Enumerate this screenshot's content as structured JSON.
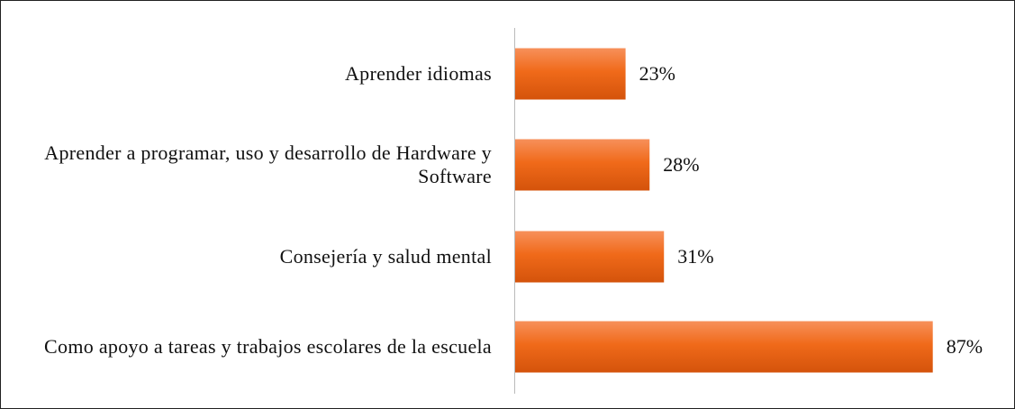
{
  "chart_data": {
    "type": "bar",
    "orientation": "horizontal",
    "categories": [
      "Aprender idiomas",
      "Aprender a programar, uso y desarrollo de Hardware y Software",
      "Consejería y salud mental",
      "Como apoyo a tareas y trabajos escolares de la escuela"
    ],
    "values": [
      23,
      28,
      31,
      87
    ],
    "value_labels": [
      "23%",
      "28%",
      "31%",
      "87%"
    ],
    "color": "#f06a1a",
    "xlim": [
      0,
      100
    ]
  }
}
